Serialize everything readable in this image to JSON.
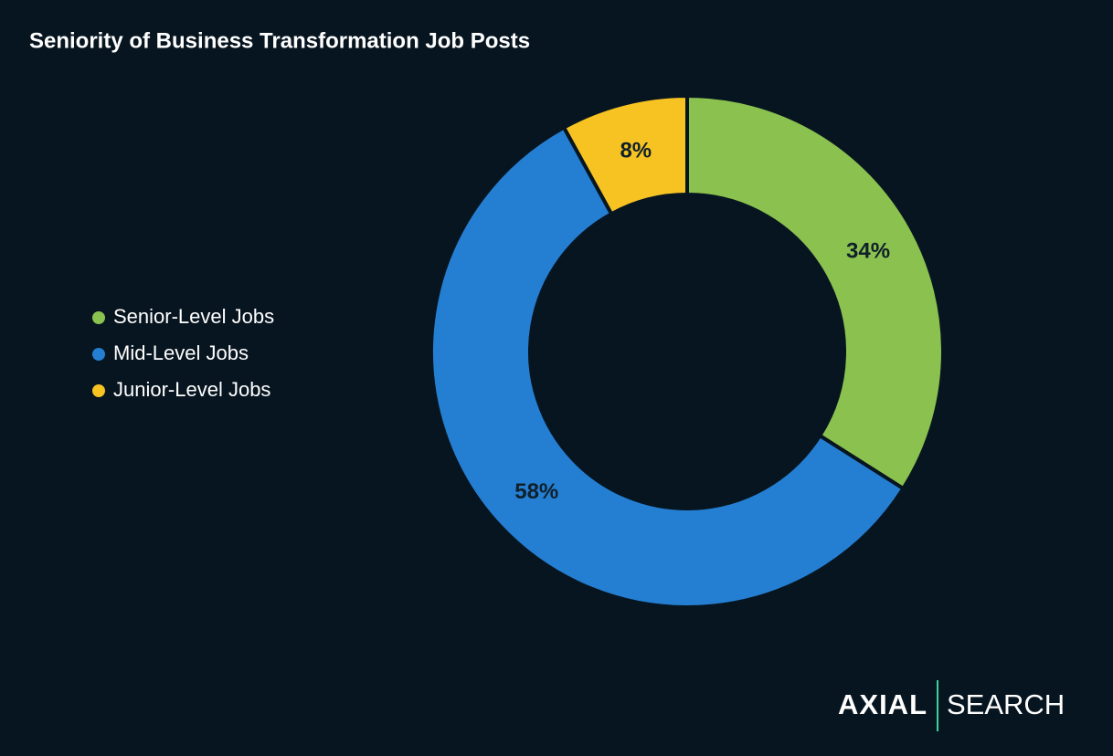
{
  "chart_data": {
    "type": "pie",
    "donut": true,
    "title": "Seniority of Business Transformation Job Posts",
    "categories": [
      "Senior-Level Jobs",
      "Mid-Level Jobs",
      "Junior-Level Jobs"
    ],
    "values": [
      34,
      58,
      8
    ],
    "value_labels": [
      "34%",
      "58%",
      "8%"
    ],
    "colors": [
      "#8bc14f",
      "#247fd3",
      "#f6c322"
    ],
    "legend": "left"
  },
  "logo": {
    "left": "AXIAL",
    "right": "SEARCH"
  }
}
